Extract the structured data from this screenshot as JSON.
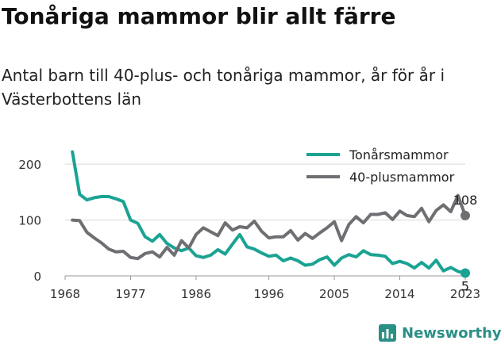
{
  "header": {
    "title": "Tonåriga mammor blir allt färre",
    "subtitle": "Antal barn till 40-plus- och tonåriga mammor, år för år i Västerbottens län"
  },
  "branding": {
    "name": "Newsworthy",
    "icon": "newsworthy-logo-icon",
    "color": "#2a8f85"
  },
  "chart_data": {
    "type": "line",
    "x": [
      1969,
      1970,
      1971,
      1972,
      1973,
      1974,
      1975,
      1976,
      1977,
      1978,
      1979,
      1980,
      1981,
      1982,
      1983,
      1984,
      1985,
      1986,
      1987,
      1988,
      1989,
      1990,
      1991,
      1992,
      1993,
      1994,
      1995,
      1996,
      1997,
      1998,
      1999,
      2000,
      2001,
      2002,
      2003,
      2004,
      2005,
      2006,
      2007,
      2008,
      2009,
      2010,
      2011,
      2012,
      2013,
      2014,
      2015,
      2016,
      2017,
      2018,
      2019,
      2020,
      2021,
      2022,
      2023
    ],
    "series": [
      {
        "name": "Tonårsmammor",
        "color": "#1aa393",
        "values": [
          222,
          146,
          136,
          140,
          142,
          142,
          138,
          133,
          100,
          94,
          70,
          62,
          74,
          58,
          50,
          45,
          50,
          36,
          33,
          37,
          47,
          39,
          57,
          74,
          52,
          48,
          41,
          35,
          37,
          27,
          32,
          27,
          19,
          21,
          29,
          34,
          19,
          32,
          38,
          34,
          45,
          38,
          37,
          35,
          22,
          26,
          22,
          14,
          24,
          14,
          28,
          9,
          15,
          8,
          5
        ]
      },
      {
        "name": "40-plusmammor",
        "color": "#6e6e73",
        "values": [
          100,
          99,
          78,
          68,
          59,
          48,
          43,
          44,
          33,
          31,
          40,
          43,
          34,
          51,
          37,
          63,
          50,
          74,
          86,
          79,
          72,
          95,
          82,
          88,
          86,
          98,
          80,
          68,
          70,
          70,
          81,
          64,
          76,
          67,
          77,
          86,
          97,
          63,
          92,
          106,
          95,
          110,
          110,
          113,
          101,
          116,
          108,
          106,
          121,
          97,
          117,
          127,
          115,
          144,
          108
        ]
      }
    ],
    "end_labels": [
      "5",
      "108"
    ],
    "xticks": [
      "1968",
      "1977",
      "1986",
      "1996",
      "2005",
      "2014",
      "2023"
    ],
    "yticks": [
      "0",
      "100",
      "200"
    ],
    "xlim": [
      1968,
      2023
    ],
    "ylim": [
      0,
      230
    ],
    "grid": "horizontal",
    "legend_position": "top-right"
  }
}
